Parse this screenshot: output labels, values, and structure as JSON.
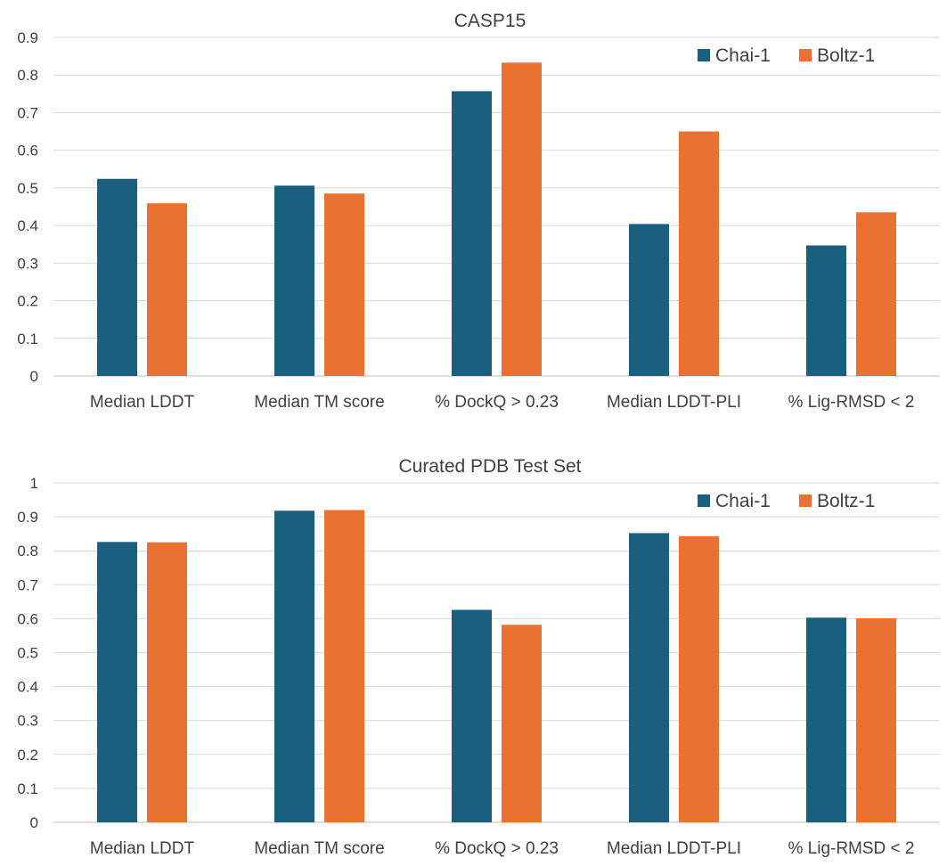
{
  "colors": {
    "chai": "#1a5f7e",
    "boltz": "#e97132"
  },
  "chart_data": [
    {
      "type": "bar",
      "title": "CASP15",
      "xlabel": "",
      "ylabel": "",
      "ylim": [
        0,
        0.9
      ],
      "yticks": [
        "0",
        "0.1",
        "0.2",
        "0.3",
        "0.4",
        "0.5",
        "0.6",
        "0.7",
        "0.8",
        "0.9"
      ],
      "grid": true,
      "legend_position": "top-right",
      "categories": [
        "Median LDDT",
        "Median TM score",
        "% DockQ > 0.23",
        "Median LDDT-PLI",
        "% Lig-RMSD < 2"
      ],
      "series": [
        {
          "name": "Chai-1",
          "values": [
            0.524,
            0.506,
            0.757,
            0.404,
            0.347
          ]
        },
        {
          "name": "Boltz-1",
          "values": [
            0.459,
            0.485,
            0.833,
            0.65,
            0.435
          ]
        }
      ]
    },
    {
      "type": "bar",
      "title": "Curated PDB Test Set",
      "xlabel": "",
      "ylabel": "",
      "ylim": [
        0,
        1
      ],
      "yticks": [
        "0",
        "0.1",
        "0.2",
        "0.3",
        "0.4",
        "0.5",
        "0.6",
        "0.7",
        "0.8",
        "0.9",
        "1"
      ],
      "grid": true,
      "legend_position": "top-right",
      "categories": [
        "Median LDDT",
        "Median TM score",
        "% DockQ > 0.23",
        "Median LDDT-PLI",
        "% Lig-RMSD < 2"
      ],
      "series": [
        {
          "name": "Chai-1",
          "values": [
            0.826,
            0.918,
            0.626,
            0.852,
            0.603
          ]
        },
        {
          "name": "Boltz-1",
          "values": [
            0.825,
            0.92,
            0.582,
            0.843,
            0.601
          ]
        }
      ]
    }
  ]
}
